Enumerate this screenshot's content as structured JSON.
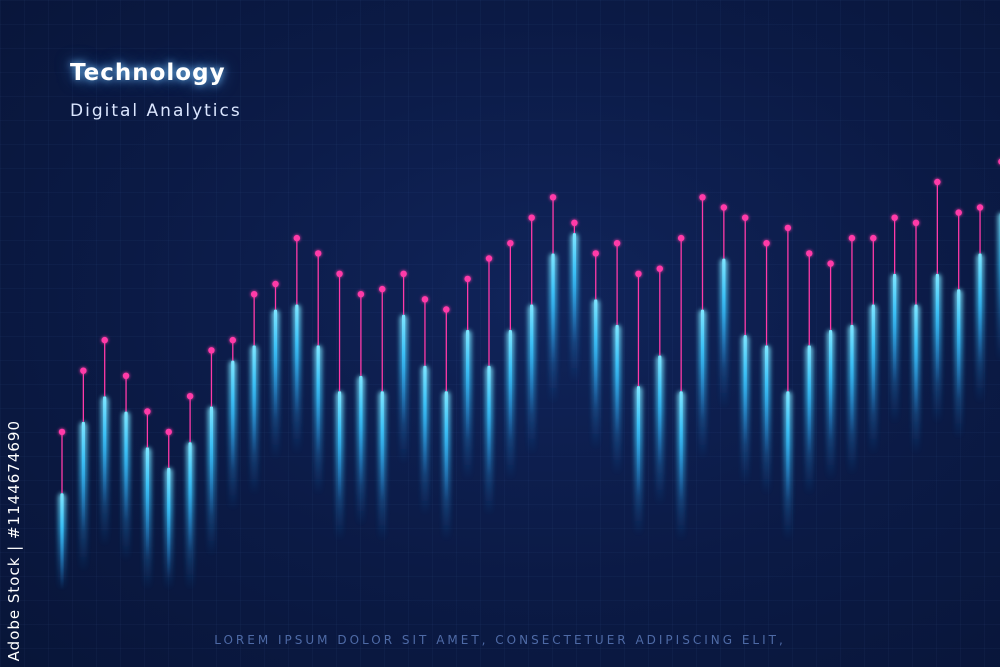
{
  "header": {
    "title": "Technology",
    "subtitle": "Digital Analytics"
  },
  "footer": {
    "text": "LOREM IPSUM DOLOR SIT AMET, CONSECTETUER ADIPISCING ELIT,"
  },
  "side_label": "Adobe Stock | #1144674690",
  "colors": {
    "background": "#0b1a45",
    "bar_glow": "#3cc8ff",
    "marker": "#ff3aa8",
    "title_glow": "#78c8ff"
  },
  "chart_data": {
    "type": "bar",
    "title": "",
    "xlabel": "",
    "ylabel": "",
    "ylim": [
      0,
      100
    ],
    "grid": false,
    "legend": "none",
    "series": [
      {
        "values": [
          31,
          43,
          49,
          42,
          35,
          31,
          38,
          47,
          49,
          58,
          60,
          69,
          66,
          62,
          58,
          59,
          62,
          57,
          55,
          61,
          65,
          68,
          73,
          77,
          72,
          66,
          68,
          62,
          63,
          69,
          77,
          75,
          73,
          68,
          71,
          66,
          64,
          69,
          69,
          73,
          72,
          80,
          74,
          75,
          84,
          83
        ]
      },
      {
        "values": [
          19,
          33,
          38,
          35,
          28,
          24,
          29,
          36,
          45,
          48,
          55,
          56,
          48,
          39,
          42,
          39,
          54,
          44,
          39,
          51,
          44,
          51,
          56,
          66,
          70,
          57,
          52,
          40,
          46,
          39,
          55,
          65,
          50,
          48,
          39,
          48,
          51,
          52,
          56,
          62,
          56,
          62,
          59,
          66,
          74,
          51
        ]
      }
    ]
  }
}
